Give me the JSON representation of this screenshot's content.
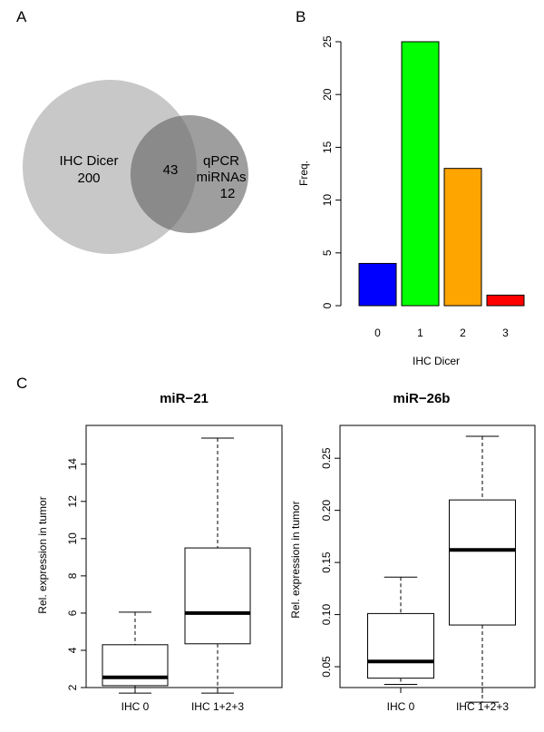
{
  "panel_labels": {
    "a": "A",
    "b": "B",
    "c": "C"
  },
  "colors": {
    "venn_left": "#c8c8c8",
    "venn_right": "#9e9e9e",
    "venn_overlap": "#8a8a8a",
    "bar_0": "#0000ff",
    "bar_1": "#00ff00",
    "bar_2": "#ffa500",
    "bar_3": "#ff0000"
  },
  "chart_data": [
    {
      "type": "venn",
      "sets": [
        {
          "line1": "IHC Dicer",
          "line2": "200"
        },
        {
          "line1": "qPCR",
          "line2": "miRNAs",
          "line3": "12"
        }
      ],
      "overlap": "43"
    },
    {
      "type": "bar",
      "categories": [
        "0",
        "1",
        "2",
        "3"
      ],
      "values": [
        4,
        25,
        13,
        1
      ],
      "xlabel": "IHC Dicer",
      "ylabel": "Freq.",
      "ylim": [
        0,
        25
      ],
      "yticks": [
        "0",
        "5",
        "10",
        "15",
        "20",
        "25"
      ]
    },
    {
      "type": "box",
      "title": "miR−21",
      "ylabel": "Rel. expression in tumor",
      "categories": [
        "IHC 0",
        "IHC 1+2+3"
      ],
      "ylim": [
        2,
        15.4
      ],
      "yticks": [
        "2",
        "4",
        "6",
        "8",
        "10",
        "12",
        "14"
      ],
      "boxes": [
        {
          "min": 1.7,
          "q1": 2.1,
          "median": 2.55,
          "q3": 4.3,
          "max": 6.05
        },
        {
          "min": 1.7,
          "q1": 4.35,
          "median": 6.0,
          "q3": 9.5,
          "max": 15.4
        }
      ]
    },
    {
      "type": "box",
      "title": "miR−26b",
      "ylabel": "Rel. expression in tumor",
      "categories": [
        "IHC 0",
        "IHC 1+2+3"
      ],
      "ylim": [
        0.03,
        0.27
      ],
      "yticks": [
        "0.05",
        "0.10",
        "0.15",
        "0.20",
        "0.25"
      ],
      "boxes": [
        {
          "min": 0.033,
          "q1": 0.039,
          "median": 0.055,
          "q3": 0.101,
          "max": 0.136
        },
        {
          "min": 0.016,
          "q1": 0.09,
          "median": 0.162,
          "q3": 0.21,
          "max": 0.271
        }
      ]
    }
  ]
}
